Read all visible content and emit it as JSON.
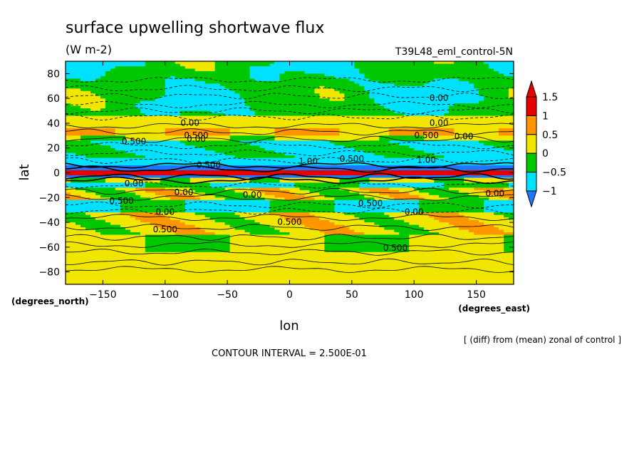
{
  "chart_data": {
    "type": "heatmap",
    "title": "surface upwelling shortwave flux",
    "units": "(W m-2)",
    "run_label": "T39L48_eml_control-5N",
    "xlabel": "lon",
    "ylabel": "lat",
    "x_units": "(degrees_east)",
    "y_units": "(degrees_north)",
    "xlim": [
      -180,
      180
    ],
    "ylim": [
      -90,
      90
    ],
    "x_ticks": [
      -150,
      -100,
      -50,
      0,
      50,
      100,
      150
    ],
    "y_ticks": [
      80,
      60,
      40,
      20,
      0,
      -20,
      -40,
      -60,
      -80
    ],
    "x_tick_labels": [
      "−150",
      "−100",
      "−50",
      "0",
      "50",
      "100",
      "150"
    ],
    "y_tick_labels": [
      "80",
      "60",
      "40",
      "20",
      "0",
      "−20",
      "−40",
      "−60",
      "−80"
    ],
    "colorbar": {
      "levels": [
        -1,
        -0.5,
        0,
        0.5,
        1,
        1.5
      ],
      "level_labels": [
        "−1",
        "−0.5",
        "0",
        "0.5",
        "1",
        "1.5"
      ],
      "colors": [
        "#1e78ff",
        "#00e1ff",
        "#00c800",
        "#f0e600",
        "#ff9600",
        "#e60000",
        "#e60000"
      ]
    },
    "contour_interval_text": "CONTOUR INTERVAL = 2.500E-01",
    "footnote": "[ (diff) from (mean) zonal of control ]",
    "contour_labels": [
      {
        "text": "0.00",
        "lon": 120,
        "lat": 58
      },
      {
        "text": "0.00",
        "lon": -80,
        "lat": 38
      },
      {
        "text": "0.500",
        "lon": -75,
        "lat": 28
      },
      {
        "text": "0.00",
        "lon": -75,
        "lat": 25
      },
      {
        "text": "0.00",
        "lon": 120,
        "lat": 38
      },
      {
        "text": "0.500",
        "lon": 110,
        "lat": 28
      },
      {
        "text": "0.00",
        "lon": 140,
        "lat": 27
      },
      {
        "text": "0.500",
        "lon": -125,
        "lat": 23
      },
      {
        "text": "1.00",
        "lon": 15,
        "lat": 7
      },
      {
        "text": "0.500",
        "lon": 50,
        "lat": 9
      },
      {
        "text": "1.00",
        "lon": 110,
        "lat": 8
      },
      {
        "text": "0.500",
        "lon": -65,
        "lat": 4
      },
      {
        "text": "0.00",
        "lon": -125,
        "lat": -11
      },
      {
        "text": "0.00",
        "lon": -85,
        "lat": -18
      },
      {
        "text": "0.00",
        "lon": -30,
        "lat": -20
      },
      {
        "text": "0.00",
        "lon": 165,
        "lat": -19
      },
      {
        "text": "0.500",
        "lon": -135,
        "lat": -25
      },
      {
        "text": "0.500",
        "lon": 65,
        "lat": -27
      },
      {
        "text": "0.00",
        "lon": -100,
        "lat": -34
      },
      {
        "text": "0.00",
        "lon": 100,
        "lat": -34
      },
      {
        "text": "0.500",
        "lon": 0,
        "lat": -42
      },
      {
        "text": "0.500",
        "lon": -100,
        "lat": -48
      },
      {
        "text": "0.500",
        "lon": 85,
        "lat": -63
      }
    ]
  }
}
